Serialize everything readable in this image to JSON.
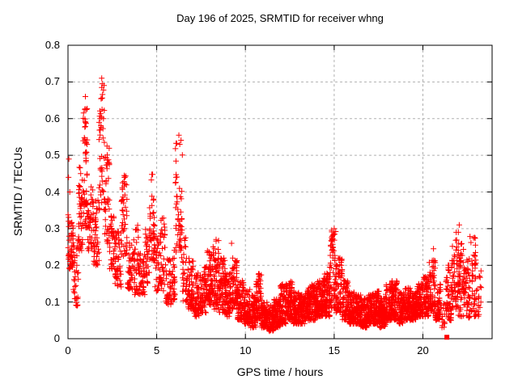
{
  "chart_data": {
    "type": "scatter",
    "title": "Day 196 of 2025, SRMTID for receiver whng",
    "xlabel": "GPS time / hours",
    "ylabel": "SRMTID / TECUs",
    "xlim": [
      0,
      23.9
    ],
    "ylim": [
      0,
      0.8
    ],
    "x_ticks": [
      0,
      5,
      10,
      15,
      20
    ],
    "y_ticks": [
      0,
      0.1,
      0.2,
      0.3,
      0.4,
      0.5,
      0.6,
      0.7,
      0.8
    ],
    "grid": true,
    "legend": "none",
    "marker": "plus",
    "marker_color": "#ff0000",
    "grid_color": "#b0b0b0",
    "axis_color": "#000000",
    "series_name": "SRMTID for receiver whng",
    "density_bins_format": [
      "x_start_hours",
      "x_end_hours",
      "y_min_TECUs",
      "y_max_TECUs",
      "point_count"
    ],
    "density_bins": [
      [
        0.0,
        0.3,
        0.19,
        0.34,
        50
      ],
      [
        0.3,
        0.6,
        0.09,
        0.28,
        36
      ],
      [
        0.6,
        0.85,
        0.24,
        0.48,
        46
      ],
      [
        0.85,
        1.1,
        0.3,
        0.63,
        54
      ],
      [
        1.1,
        1.45,
        0.24,
        0.42,
        42
      ],
      [
        1.45,
        1.75,
        0.2,
        0.38,
        40
      ],
      [
        1.75,
        2.05,
        0.35,
        0.71,
        46
      ],
      [
        2.05,
        2.35,
        0.26,
        0.53,
        42
      ],
      [
        2.35,
        2.65,
        0.19,
        0.34,
        40
      ],
      [
        2.65,
        3.0,
        0.14,
        0.3,
        46
      ],
      [
        3.0,
        3.35,
        0.22,
        0.45,
        46
      ],
      [
        3.35,
        3.7,
        0.13,
        0.27,
        40
      ],
      [
        3.7,
        4.0,
        0.12,
        0.31,
        40
      ],
      [
        4.0,
        4.35,
        0.12,
        0.24,
        40
      ],
      [
        4.35,
        4.6,
        0.15,
        0.32,
        32
      ],
      [
        4.6,
        4.9,
        0.2,
        0.45,
        42
      ],
      [
        4.9,
        5.2,
        0.13,
        0.28,
        36
      ],
      [
        5.2,
        5.5,
        0.12,
        0.33,
        36
      ],
      [
        5.5,
        5.8,
        0.09,
        0.22,
        36
      ],
      [
        5.8,
        6.05,
        0.1,
        0.25,
        32
      ],
      [
        6.05,
        6.45,
        0.22,
        0.56,
        54
      ],
      [
        6.45,
        6.75,
        0.1,
        0.28,
        36
      ],
      [
        6.75,
        7.1,
        0.08,
        0.22,
        60
      ],
      [
        7.1,
        7.45,
        0.06,
        0.18,
        60
      ],
      [
        7.45,
        7.8,
        0.07,
        0.2,
        60
      ],
      [
        7.8,
        8.15,
        0.09,
        0.25,
        65
      ],
      [
        8.15,
        8.5,
        0.08,
        0.28,
        65
      ],
      [
        8.5,
        8.85,
        0.07,
        0.22,
        65
      ],
      [
        8.85,
        9.2,
        0.06,
        0.18,
        65
      ],
      [
        9.2,
        9.55,
        0.08,
        0.22,
        65
      ],
      [
        9.55,
        9.9,
        0.05,
        0.16,
        70
      ],
      [
        9.9,
        10.25,
        0.04,
        0.14,
        75
      ],
      [
        10.25,
        10.6,
        0.03,
        0.12,
        75
      ],
      [
        10.6,
        10.9,
        0.05,
        0.18,
        70
      ],
      [
        10.9,
        11.25,
        0.03,
        0.1,
        80
      ],
      [
        11.25,
        11.6,
        0.02,
        0.09,
        80
      ],
      [
        11.6,
        11.95,
        0.03,
        0.11,
        80
      ],
      [
        11.95,
        12.3,
        0.04,
        0.15,
        80
      ],
      [
        12.3,
        12.65,
        0.05,
        0.16,
        80
      ],
      [
        12.65,
        13.0,
        0.04,
        0.13,
        80
      ],
      [
        13.0,
        13.35,
        0.04,
        0.12,
        80
      ],
      [
        13.35,
        13.7,
        0.05,
        0.14,
        80
      ],
      [
        13.7,
        14.05,
        0.05,
        0.15,
        80
      ],
      [
        14.05,
        14.4,
        0.06,
        0.16,
        80
      ],
      [
        14.4,
        14.75,
        0.06,
        0.18,
        80
      ],
      [
        14.75,
        15.1,
        0.08,
        0.3,
        70
      ],
      [
        15.1,
        15.45,
        0.07,
        0.22,
        70
      ],
      [
        15.45,
        15.8,
        0.05,
        0.16,
        70
      ],
      [
        15.8,
        16.15,
        0.04,
        0.13,
        80
      ],
      [
        16.15,
        16.5,
        0.04,
        0.12,
        80
      ],
      [
        16.5,
        16.85,
        0.03,
        0.11,
        80
      ],
      [
        16.85,
        17.2,
        0.04,
        0.12,
        80
      ],
      [
        17.2,
        17.55,
        0.04,
        0.13,
        80
      ],
      [
        17.55,
        17.9,
        0.03,
        0.11,
        80
      ],
      [
        17.9,
        18.25,
        0.05,
        0.15,
        80
      ],
      [
        18.25,
        18.6,
        0.05,
        0.16,
        80
      ],
      [
        18.6,
        18.95,
        0.04,
        0.13,
        80
      ],
      [
        18.95,
        19.3,
        0.05,
        0.14,
        80
      ],
      [
        19.3,
        19.65,
        0.05,
        0.13,
        80
      ],
      [
        19.65,
        20.0,
        0.06,
        0.15,
        80
      ],
      [
        20.0,
        20.35,
        0.06,
        0.17,
        70
      ],
      [
        20.35,
        20.7,
        0.07,
        0.22,
        60
      ],
      [
        20.7,
        21.0,
        0.05,
        0.15,
        50
      ],
      [
        21.0,
        21.3,
        0.03,
        0.1,
        16
      ],
      [
        21.3,
        21.6,
        0.05,
        0.22,
        50
      ],
      [
        21.6,
        21.95,
        0.08,
        0.27,
        55
      ],
      [
        21.95,
        22.3,
        0.06,
        0.26,
        55
      ],
      [
        22.3,
        22.65,
        0.05,
        0.22,
        50
      ],
      [
        22.65,
        23.0,
        0.06,
        0.28,
        45
      ],
      [
        23.0,
        23.3,
        0.06,
        0.2,
        20
      ]
    ],
    "outlier_points": [
      [
        0.03,
        0.44
      ],
      [
        0.05,
        0.49
      ],
      [
        0.1,
        0.4
      ],
      [
        0.5,
        0.09
      ],
      [
        0.95,
        0.625
      ],
      [
        0.98,
        0.66
      ],
      [
        1.88,
        0.655
      ],
      [
        1.9,
        0.71
      ],
      [
        1.93,
        0.695
      ],
      [
        2.0,
        0.6
      ],
      [
        2.2,
        0.525
      ],
      [
        6.25,
        0.555
      ],
      [
        6.3,
        0.53
      ],
      [
        9.22,
        0.26
      ],
      [
        11.4,
        0.025
      ],
      [
        15.0,
        0.3
      ],
      [
        15.03,
        0.285
      ],
      [
        20.6,
        0.245
      ],
      [
        21.88,
        0.29
      ],
      [
        22.0,
        0.29
      ],
      [
        22.05,
        0.31
      ],
      [
        22.85,
        0.275
      ]
    ],
    "square_marker_point": [
      21.35,
      0.004
    ]
  }
}
